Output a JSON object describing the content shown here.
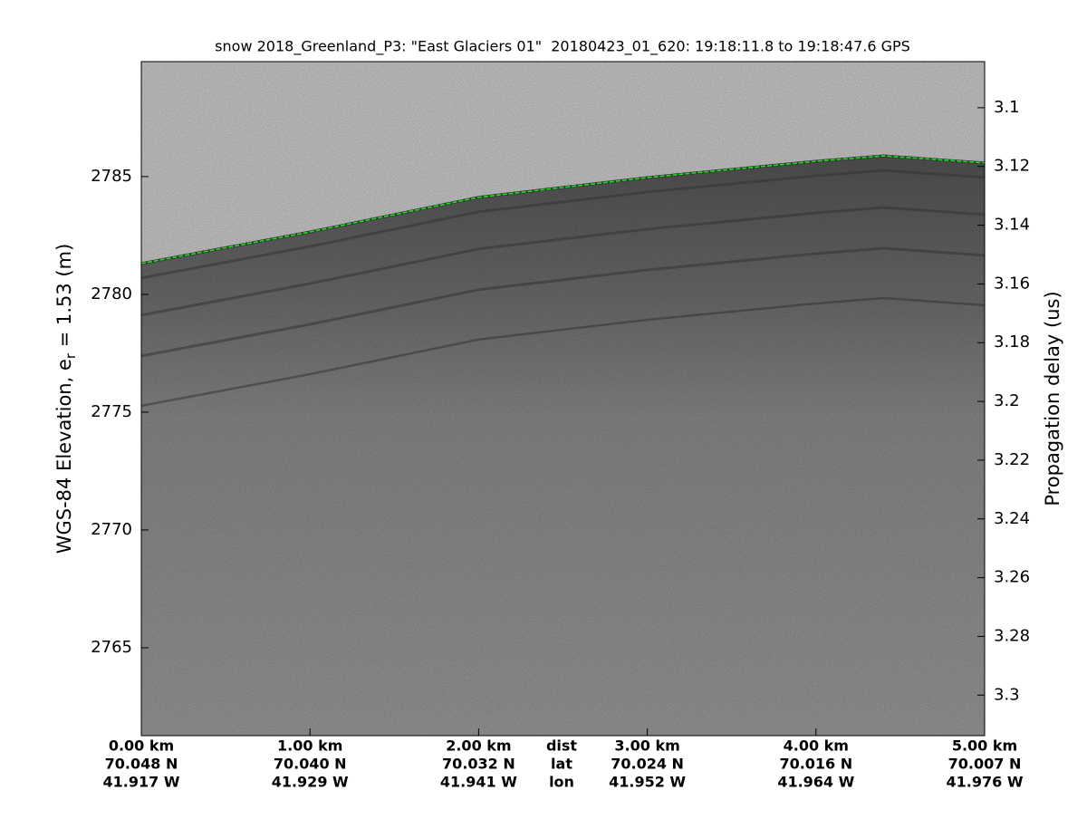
{
  "chart_data": {
    "type": "echogram",
    "title": "snow 2018_Greenland_P3: \"East Glaciers 01\"  20180423_01_620: 19:18:11.8 to 19:18:47.6 GPS",
    "ylabel": [
      "WGS-84 Elevation, e",
      "r",
      " = 1.53 (m)"
    ],
    "y2label": "Propagation delay (us)",
    "xlim": [
      0,
      5
    ],
    "xticks": [
      {
        "value": 0,
        "label": "0.00 km"
      },
      {
        "value": 1,
        "label": "1.00 km"
      },
      {
        "value": 2,
        "label": "2.00 km"
      },
      {
        "value": 3,
        "label": "3.00 km"
      },
      {
        "value": 4,
        "label": "4.00 km"
      },
      {
        "value": 5,
        "label": "5.00 km"
      }
    ],
    "lat": [
      "70.048 N",
      "70.040 N",
      "70.032 N",
      "70.024 N",
      "70.016 N",
      "70.007 N"
    ],
    "lon": [
      "41.917 W",
      "41.929 W",
      "41.941 W",
      "41.952 W",
      "41.964 W",
      "41.976 W"
    ],
    "row_labels": [
      "dist",
      "lat",
      "lon"
    ],
    "ylim": [
      2761.27,
      2789.88
    ],
    "yticks": [
      2765,
      2770,
      2775,
      2780,
      2785
    ],
    "y2lim": [
      3.3138,
      3.0843
    ],
    "y2ticks": [
      3.1,
      3.12,
      3.14,
      3.16,
      3.18,
      3.2,
      3.22,
      3.24,
      3.26,
      3.28,
      3.3
    ],
    "series": [
      {
        "color": "#22dd22",
        "x": [
          0,
          1,
          2,
          3,
          4,
          4.4,
          5
        ],
        "values": [
          2781.31,
          2782.65,
          2784.12,
          2784.96,
          2785.65,
          2785.88,
          2785.58
        ]
      }
    ]
  }
}
